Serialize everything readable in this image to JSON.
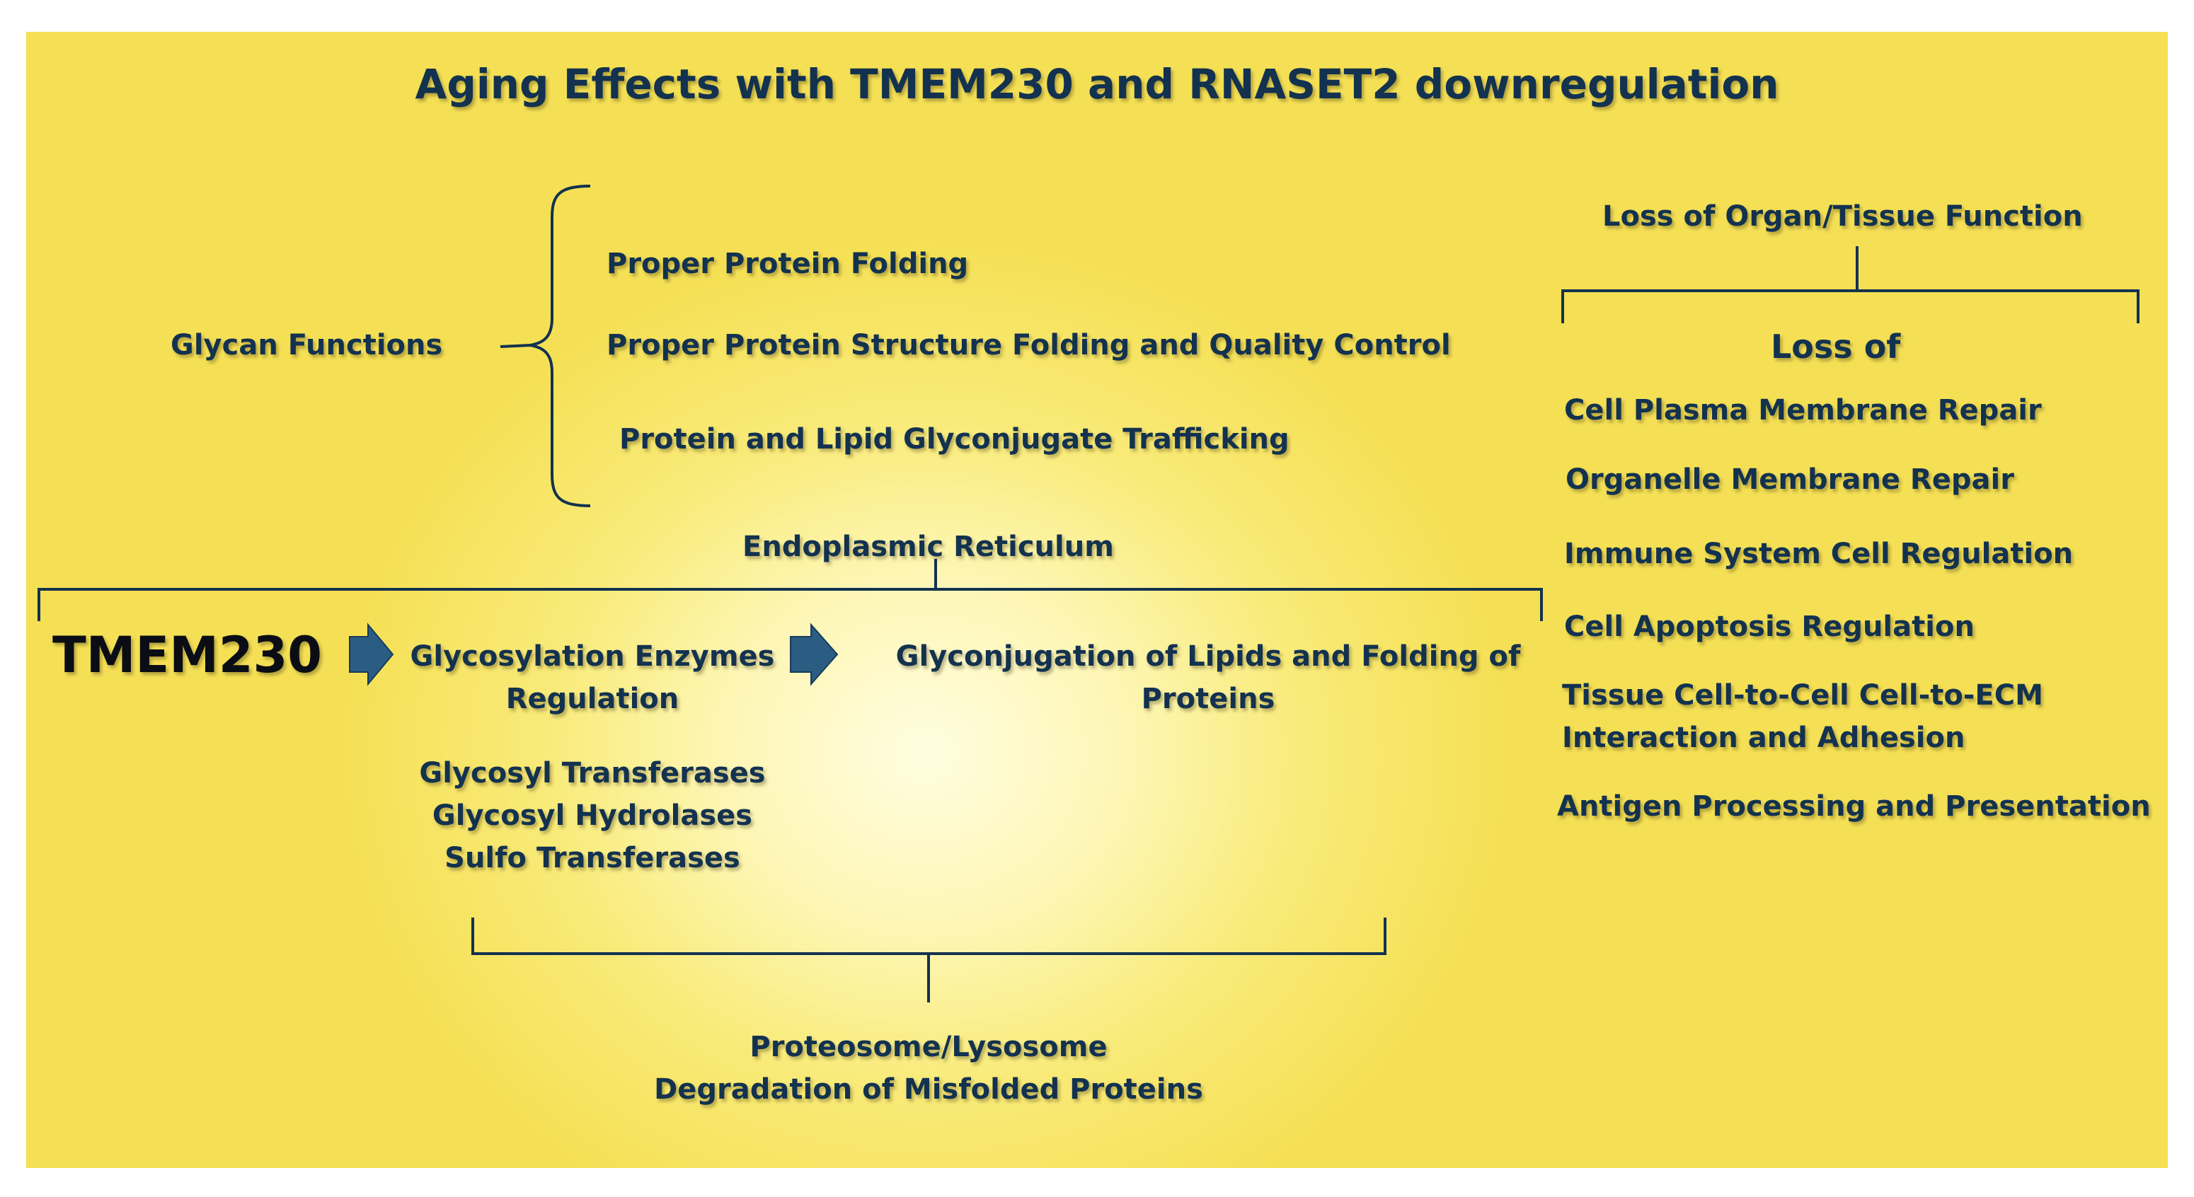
{
  "title": "Aging Effects with TMEM230 and RNASET2 downregulation",
  "glycan": {
    "label": "Glycan Functions",
    "items": [
      "Proper Protein Folding",
      "Proper Protein Structure Folding and Quality Control",
      "Protein and  Lipid Glyconjugate Trafficking"
    ]
  },
  "er": {
    "label": "Endoplasmic Reticulum",
    "tmem": "TMEM230",
    "enzymes_line1": "Glycosylation Enzymes",
    "enzymes_line2": "Regulation",
    "glyco_line1": "Glyconjugation of Lipids and Folding of",
    "glyco_line2": "Proteins",
    "enzyme_list": [
      "Glycosyl Transferases",
      "Glycosyl Hydrolases",
      "Sulfo Transferases"
    ]
  },
  "degradation": {
    "line1": "Proteosome/Lysosome",
    "line2": "Degradation of Misfolded Proteins"
  },
  "loss": {
    "header": "Loss of Organ/Tissue Function",
    "sub": "Loss of",
    "items": [
      "Cell Plasma Membrane Repair",
      "Organelle Membrane Repair",
      "Immune System Cell Regulation",
      "Cell Apoptosis Regulation",
      "Tissue Cell-to-Cell  Cell-to-ECM",
      "Interaction and Adhesion",
      "Antigen Processing and Presentation"
    ]
  },
  "colors": {
    "text": "#13324f",
    "arrow": "#2b5d82",
    "background": "#f8e86e"
  }
}
